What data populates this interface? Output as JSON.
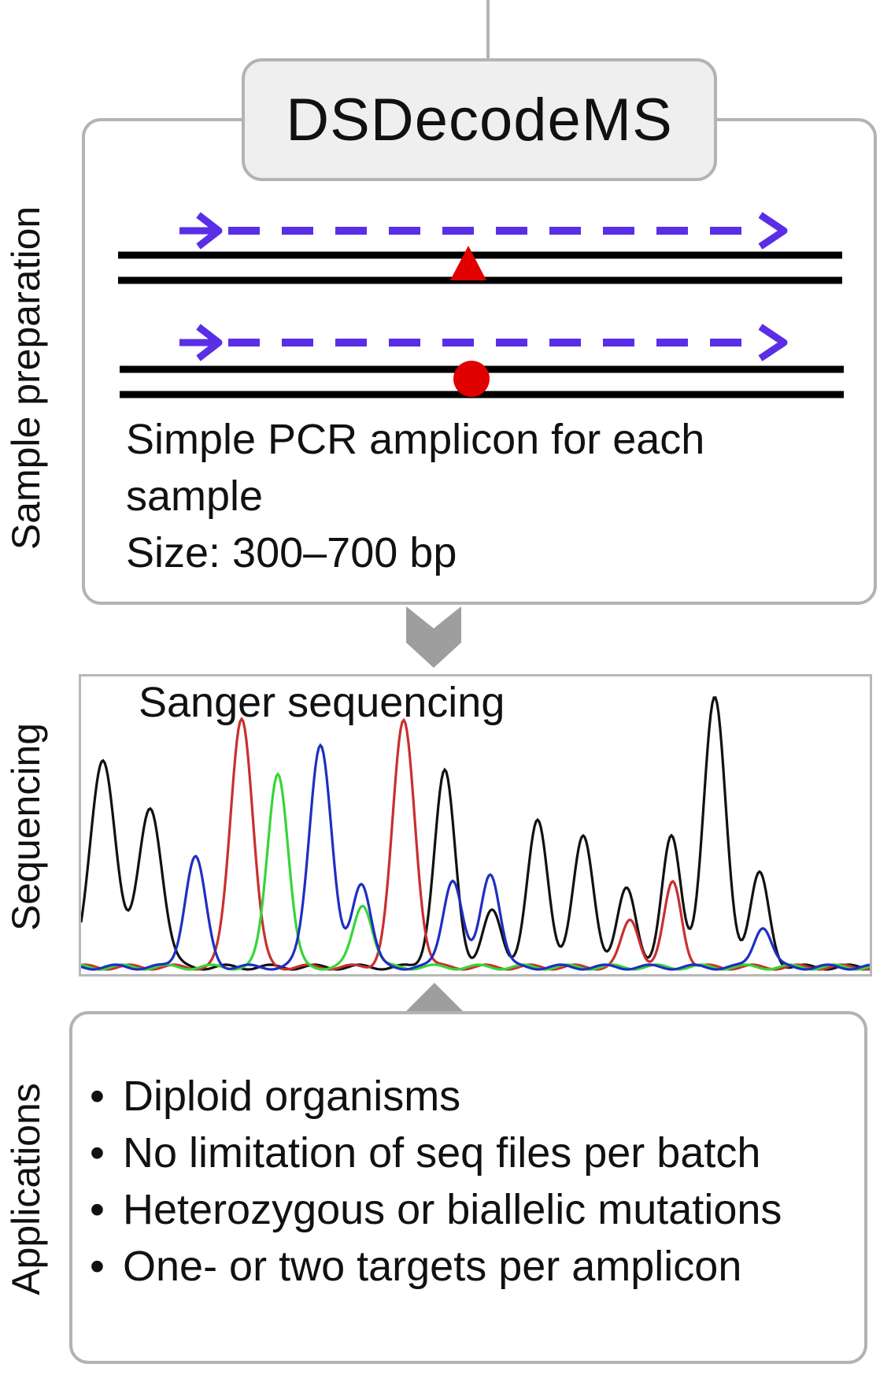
{
  "side_labels": {
    "sample_preparation": "Sample preparation",
    "sequencing": "Sequencing",
    "applications": "Applications"
  },
  "title": "DSDecodeMS",
  "sample_prep": {
    "line1": "Simple PCR amplicon for each",
    "line2": "sample",
    "line3": "Size: 300–700 bp",
    "colors": {
      "arrow": "#5a2ee6",
      "mutation": "#e00000",
      "dna": "#000000"
    }
  },
  "sequencing": {
    "label": "Sanger sequencing",
    "colors": {
      "black": "#111111",
      "red": "#c8302f",
      "green": "#38d438",
      "blue": "#1f2fc0"
    }
  },
  "applications": {
    "items": [
      "Diploid organisms",
      "No limitation of seq files per batch",
      "Heterozygous or biallelic mutations",
      "One- or two targets per amplicon"
    ]
  }
}
